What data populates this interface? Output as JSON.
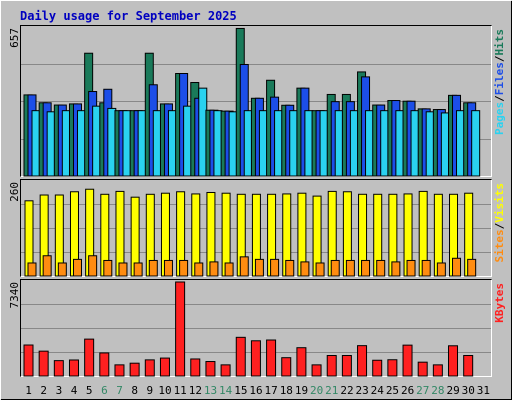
{
  "colors": {
    "frame_bg": "#c0c0c0",
    "plot_bg": "#c0c0c0",
    "grid": "#888888",
    "title": "#0000c0",
    "weekday": "#000000",
    "weekend": "#338866",
    "pages": "#2ad2f0",
    "files": "#1c4ee8",
    "hits": "#1a7a5a",
    "visits": "#ffff00",
    "sites": "#ff8c10",
    "kbytes": "#ff2020"
  },
  "chart_data": {
    "type": "bar",
    "title": "Daily usage for September 2025",
    "categories": [
      "1",
      "2",
      "3",
      "4",
      "5",
      "6",
      "7",
      "8",
      "9",
      "10",
      "11",
      "12",
      "13",
      "14",
      "15",
      "16",
      "17",
      "18",
      "19",
      "20",
      "21",
      "22",
      "23",
      "24",
      "25",
      "26",
      "27",
      "28",
      "29",
      "30",
      "31"
    ],
    "weekend_days": [
      "6",
      "7",
      "13",
      "14",
      "20",
      "21",
      "27",
      "28"
    ],
    "panels": [
      {
        "id": "hits-files-pages",
        "ymax_label": "657",
        "ylim": [
          0,
          657
        ],
        "legend": [
          "Pages",
          "/",
          "Files",
          "/",
          "Hits"
        ],
        "series": [
          {
            "name": "Hits",
            "color_key": "hits",
            "values": [
              360,
              325,
              315,
              320,
              545,
              325,
              290,
              290,
              545,
              320,
              455,
              415,
              292,
              288,
              655,
              345,
              425,
              314,
              390,
              290,
              362,
              362,
              462,
              315,
              335,
              332,
              298,
              295,
              358,
              325,
              0
            ]
          },
          {
            "name": "Files",
            "color_key": "files",
            "values": [
              360,
              325,
              315,
              320,
              375,
              385,
              290,
              290,
              405,
              320,
              455,
              345,
              292,
              288,
              495,
              345,
              350,
              314,
              390,
              290,
              330,
              330,
              440,
              315,
              335,
              332,
              298,
              295,
              358,
              325,
              0
            ]
          },
          {
            "name": "Pages",
            "color_key": "pages",
            "values": [
              290,
              285,
              290,
              290,
              310,
              300,
              290,
              290,
              290,
              290,
              310,
              390,
              290,
              285,
              290,
              290,
              290,
              290,
              290,
              290,
              290,
              290,
              290,
              290,
              290,
              290,
              285,
              280,
              290,
              290,
              0
            ]
          }
        ]
      },
      {
        "id": "visits-sites",
        "ymax_label": "260",
        "ylim": [
          0,
          260
        ],
        "legend": [
          "Sites",
          "/",
          "Visits"
        ],
        "series": [
          {
            "name": "Visits",
            "color_key": "visits",
            "values": [
              208,
              224,
              224,
              233,
              240,
              226,
              234,
              218,
              226,
              229,
              233,
              227,
              231,
              229,
              226,
              226,
              226,
              227,
              229,
              221,
              234,
              233,
              226,
              226,
              226,
              227,
              234,
              226,
              226,
              229,
              0
            ]
          },
          {
            "name": "Sites",
            "color_key": "sites",
            "values": [
              36,
              56,
              36,
              46,
              56,
              43,
              36,
              36,
              43,
              43,
              43,
              36,
              39,
              36,
              53,
              46,
              46,
              43,
              39,
              36,
              43,
              43,
              43,
              43,
              39,
              43,
              43,
              36,
              49,
              46,
              0
            ]
          }
        ]
      },
      {
        "id": "kbytes",
        "ymax_label": "7340",
        "ylim": [
          0,
          7340
        ],
        "legend": [
          "KBytes"
        ],
        "series": [
          {
            "name": "KBytes",
            "color_key": "kbytes",
            "values": [
              2420,
              1940,
              1200,
              1250,
              2880,
              1800,
              870,
              1000,
              1260,
              1400,
              7340,
              1330,
              1130,
              870,
              3020,
              2750,
              2810,
              1430,
              2210,
              870,
              1600,
              1600,
              2370,
              1230,
              1270,
              2410,
              1080,
              870,
              2360,
              1600,
              0
            ]
          }
        ]
      }
    ]
  }
}
